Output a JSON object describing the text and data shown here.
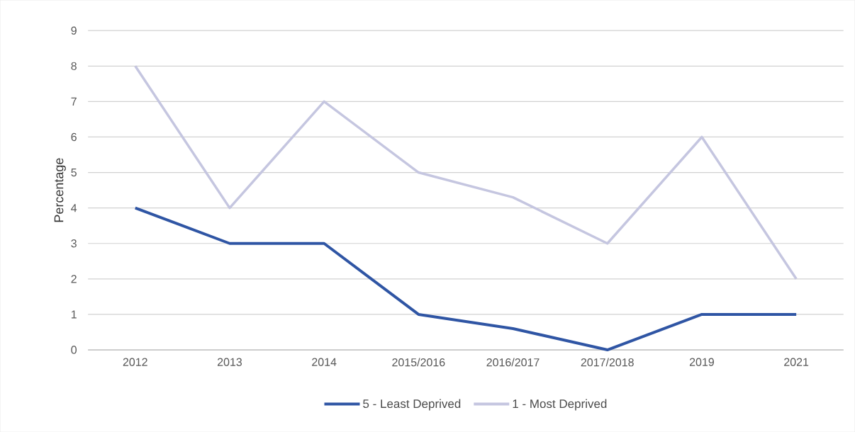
{
  "chart_data": {
    "type": "line",
    "ylabel": "Percentage",
    "categories": [
      "2012",
      "2013",
      "2014",
      "2015/2016",
      "2016/2017",
      "2017/2018",
      "2019",
      "2021"
    ],
    "series": [
      {
        "name": "5 - Least Deprived",
        "color": "#2f55a4",
        "values": [
          4,
          3,
          3,
          1,
          0.6,
          0,
          1,
          1
        ]
      },
      {
        "name": "1 - Most Deprived",
        "color": "#c5c6e0",
        "values": [
          8,
          4,
          7,
          5,
          4.3,
          3,
          6,
          2
        ]
      }
    ],
    "ylim": [
      0,
      9
    ],
    "yticks": [
      0,
      1,
      2,
      3,
      4,
      5,
      6,
      7,
      8,
      9
    ],
    "grid": "y",
    "legend": "bottom",
    "marker": "none",
    "line_style": "solid"
  }
}
